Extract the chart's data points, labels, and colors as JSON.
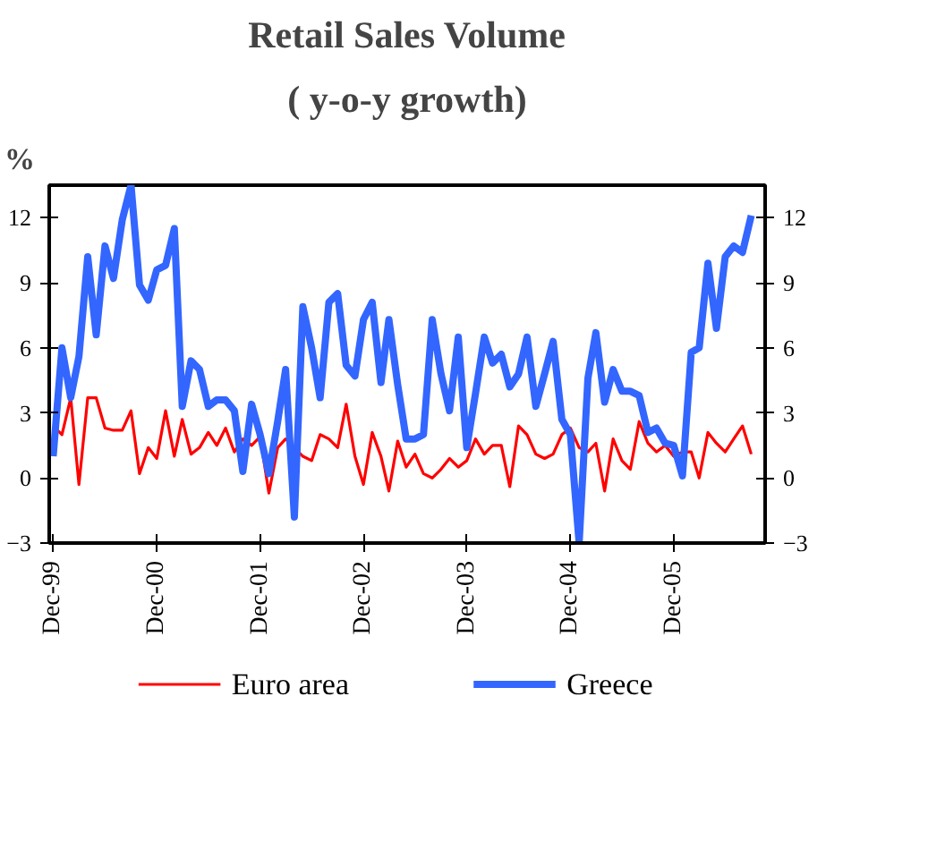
{
  "chart_data": {
    "type": "line",
    "title": "Retail Sales Volume",
    "subtitle": "( y-o-y growth)",
    "ylabel": "%",
    "x": [
      "1999-12",
      "2000-01",
      "2000-02",
      "2000-03",
      "2000-04",
      "2000-05",
      "2000-06",
      "2000-07",
      "2000-08",
      "2000-09",
      "2000-10",
      "2000-11",
      "2000-12",
      "2001-01",
      "2001-02",
      "2001-03",
      "2001-04",
      "2001-05",
      "2001-06",
      "2001-07",
      "2001-08",
      "2001-09",
      "2001-10",
      "2001-11",
      "2001-12",
      "2002-01",
      "2002-02",
      "2002-03",
      "2002-04",
      "2002-05",
      "2002-06",
      "2002-07",
      "2002-08",
      "2002-09",
      "2002-10",
      "2002-11",
      "2002-12",
      "2003-01",
      "2003-02",
      "2003-03",
      "2003-04",
      "2003-05",
      "2003-06",
      "2003-07",
      "2003-08",
      "2003-09",
      "2003-10",
      "2003-11",
      "2003-12",
      "2004-01",
      "2004-02",
      "2004-03",
      "2004-04",
      "2004-05",
      "2004-06",
      "2004-07",
      "2004-08",
      "2004-09",
      "2004-10",
      "2004-11",
      "2004-12",
      "2005-01",
      "2005-02",
      "2005-03",
      "2005-04",
      "2005-05",
      "2005-06",
      "2005-07",
      "2005-08",
      "2005-09",
      "2005-10",
      "2005-11",
      "2005-12",
      "2006-01",
      "2006-02",
      "2006-03",
      "2006-04",
      "2006-05",
      "2006-06",
      "2006-07",
      "2006-08",
      "2006-09"
    ],
    "series": [
      {
        "name": "Euro area",
        "color": "#ff0000",
        "values": [
          2.4,
          2.0,
          3.7,
          -0.3,
          3.7,
          3.7,
          2.3,
          2.2,
          2.2,
          3.1,
          0.2,
          1.4,
          0.9,
          3.1,
          1.0,
          2.7,
          1.1,
          1.4,
          2.1,
          1.5,
          2.3,
          1.2,
          1.8,
          1.5,
          1.9,
          -0.7,
          1.4,
          1.8,
          1.4,
          1.0,
          0.8,
          2.0,
          1.8,
          1.4,
          3.4,
          1.0,
          -0.3,
          2.1,
          1.0,
          -0.6,
          1.7,
          0.5,
          1.1,
          0.2,
          0.0,
          0.4,
          0.9,
          0.5,
          0.8,
          1.8,
          1.1,
          1.5,
          1.5,
          -0.4,
          2.4,
          2.0,
          1.1,
          0.9,
          1.1,
          2.0,
          2.3,
          1.4,
          1.2,
          1.6,
          -0.6,
          1.8,
          0.8,
          0.4,
          2.6,
          1.6,
          1.2,
          1.5,
          1.0,
          1.2,
          1.2,
          0.0,
          2.1,
          1.6,
          1.2,
          1.8,
          2.4,
          1.1
        ]
      },
      {
        "name": "Greece",
        "color": "#3366ff",
        "values": [
          1.0,
          6.0,
          3.7,
          5.6,
          10.2,
          6.6,
          10.7,
          9.2,
          11.9,
          13.5,
          8.9,
          8.2,
          9.6,
          9.8,
          11.5,
          3.3,
          5.4,
          5.0,
          3.3,
          3.6,
          3.6,
          3.1,
          0.3,
          3.4,
          2.0,
          0.2,
          2.6,
          5.0,
          -1.8,
          7.9,
          6.0,
          3.7,
          8.1,
          8.5,
          5.2,
          4.7,
          7.3,
          8.1,
          4.4,
          7.3,
          4.3,
          1.8,
          1.8,
          2.0,
          7.3,
          4.8,
          3.1,
          6.5,
          1.4,
          3.9,
          6.5,
          5.3,
          5.7,
          4.2,
          4.8,
          6.5,
          3.3,
          4.8,
          6.3,
          2.7,
          2.0,
          -3.0,
          4.6,
          6.7,
          3.5,
          5.0,
          4.0,
          4.0,
          3.8,
          2.1,
          2.3,
          1.6,
          1.5,
          0.1,
          5.8,
          6.0,
          9.9,
          6.9,
          10.2,
          10.7,
          10.4,
          12.1
        ]
      }
    ],
    "xlim": [
      "1999-11-17",
      "2006-10-20"
    ],
    "xticks": [
      {
        "value": "1999-12",
        "label": "Dec-99"
      },
      {
        "value": "2000-12",
        "label": "Dec-00"
      },
      {
        "value": "2001-12",
        "label": "Dec-01"
      },
      {
        "value": "2002-12",
        "label": "Dec-02"
      },
      {
        "value": "2003-12",
        "label": "Dec-03"
      },
      {
        "value": "2004-12",
        "label": "Dec-04"
      },
      {
        "value": "2005-12",
        "label": "Dec-05"
      }
    ],
    "ylim": [
      -3,
      13.5
    ],
    "yticks": [
      -3,
      0,
      3,
      6,
      9,
      12
    ],
    "y2lim": [
      -3,
      13.5
    ],
    "y2ticks": [
      -3,
      0,
      3,
      6,
      9,
      12
    ],
    "grid": false,
    "legend": "bottom",
    "marker": "none",
    "line_style": "solid"
  }
}
